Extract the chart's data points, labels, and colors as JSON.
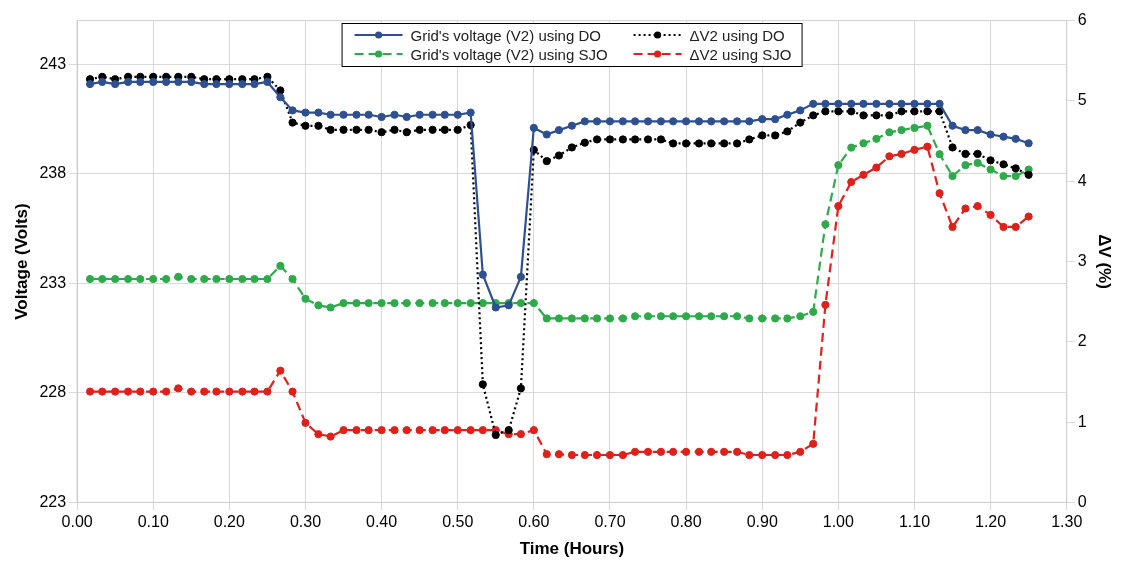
{
  "chart_data": {
    "type": "line",
    "xlabel": "Time (Hours)",
    "ylabel": "Voltage (Volts)",
    "y2label": "ΔV (%)",
    "x": [
      0.017,
      0.033,
      0.05,
      0.067,
      0.083,
      0.1,
      0.117,
      0.133,
      0.15,
      0.167,
      0.183,
      0.2,
      0.217,
      0.233,
      0.25,
      0.267,
      0.283,
      0.3,
      0.317,
      0.333,
      0.35,
      0.367,
      0.383,
      0.4,
      0.417,
      0.433,
      0.45,
      0.467,
      0.483,
      0.5,
      0.517,
      0.533,
      0.55,
      0.567,
      0.583,
      0.6,
      0.617,
      0.633,
      0.65,
      0.667,
      0.683,
      0.7,
      0.717,
      0.733,
      0.75,
      0.767,
      0.783,
      0.8,
      0.817,
      0.833,
      0.85,
      0.867,
      0.883,
      0.9,
      0.917,
      0.933,
      0.95,
      0.967,
      0.983,
      1.0,
      1.017,
      1.033,
      1.05,
      1.067,
      1.083,
      1.1,
      1.117,
      1.133,
      1.15,
      1.167,
      1.183,
      1.2,
      1.217,
      1.233,
      1.25
    ],
    "series": [
      {
        "name": "Grid's voltage (V2) using DO",
        "color": "#2e5090",
        "line_style": "solid",
        "values": [
          242.1,
          242.2,
          242.1,
          242.2,
          242.2,
          242.2,
          242.2,
          242.2,
          242.2,
          242.1,
          242.1,
          242.1,
          242.1,
          242.1,
          242.2,
          241.5,
          240.9,
          240.8,
          240.8,
          240.7,
          240.7,
          240.7,
          240.7,
          240.6,
          240.7,
          240.6,
          240.7,
          240.7,
          240.7,
          240.7,
          240.8,
          233.4,
          231.9,
          232.0,
          233.3,
          240.1,
          239.8,
          240.0,
          240.2,
          240.4,
          240.4,
          240.4,
          240.4,
          240.4,
          240.4,
          240.4,
          240.4,
          240.4,
          240.4,
          240.4,
          240.4,
          240.4,
          240.4,
          240.5,
          240.5,
          240.7,
          240.9,
          241.2,
          241.2,
          241.2,
          241.2,
          241.2,
          241.2,
          241.2,
          241.2,
          241.2,
          241.2,
          241.2,
          240.2,
          240.0,
          240.0,
          239.8,
          239.7,
          239.6,
          239.4
        ]
      },
      {
        "name": "ΔV2 using DO",
        "color": "#000000",
        "line_style": "dotted",
        "axis": "y2",
        "values": [
          5.27,
          5.3,
          5.27,
          5.3,
          5.3,
          5.3,
          5.3,
          5.3,
          5.3,
          5.27,
          5.27,
          5.27,
          5.27,
          5.27,
          5.3,
          5.13,
          4.73,
          4.69,
          4.69,
          4.64,
          4.64,
          4.64,
          4.64,
          4.61,
          4.64,
          4.61,
          4.64,
          4.64,
          4.64,
          4.64,
          4.7,
          1.47,
          0.84,
          0.9,
          1.42,
          4.39,
          4.25,
          4.32,
          4.42,
          4.48,
          4.52,
          4.52,
          4.52,
          4.52,
          4.52,
          4.52,
          4.47,
          4.47,
          4.47,
          4.47,
          4.47,
          4.47,
          4.52,
          4.57,
          4.57,
          4.62,
          4.73,
          4.82,
          4.87,
          4.87,
          4.87,
          4.82,
          4.82,
          4.82,
          4.87,
          4.87,
          4.87,
          4.87,
          4.42,
          4.34,
          4.34,
          4.26,
          4.21,
          4.16,
          4.08
        ]
      },
      {
        "name": "Grid's voltage (V2) using SJO",
        "color": "#2eaa4a",
        "line_style": "dashed",
        "values": [
          233.2,
          233.2,
          233.2,
          233.2,
          233.2,
          233.2,
          233.2,
          233.3,
          233.2,
          233.2,
          233.2,
          233.2,
          233.2,
          233.2,
          233.2,
          233.8,
          233.2,
          232.3,
          232.0,
          231.9,
          232.1,
          232.1,
          232.1,
          232.1,
          232.1,
          232.1,
          232.1,
          232.1,
          232.1,
          232.1,
          232.1,
          232.1,
          232.1,
          232.1,
          232.1,
          232.1,
          231.4,
          231.4,
          231.4,
          231.4,
          231.4,
          231.4,
          231.4,
          231.5,
          231.5,
          231.5,
          231.5,
          231.5,
          231.5,
          231.5,
          231.5,
          231.5,
          231.4,
          231.4,
          231.4,
          231.4,
          231.5,
          231.7,
          235.7,
          238.4,
          239.2,
          239.4,
          239.6,
          239.9,
          240.0,
          240.1,
          240.2,
          238.9,
          237.9,
          238.4,
          238.5,
          238.2,
          237.9,
          237.9,
          238.2
        ]
      },
      {
        "name": "ΔV2 using SJO",
        "color": "#e0201a",
        "line_style": "dashed",
        "axis": "y2",
        "values": [
          1.38,
          1.38,
          1.38,
          1.38,
          1.38,
          1.38,
          1.38,
          1.42,
          1.38,
          1.38,
          1.38,
          1.38,
          1.38,
          1.38,
          1.38,
          1.64,
          1.38,
          0.99,
          0.85,
          0.82,
          0.9,
          0.9,
          0.9,
          0.9,
          0.9,
          0.9,
          0.9,
          0.9,
          0.9,
          0.9,
          0.9,
          0.9,
          0.9,
          0.85,
          0.85,
          0.9,
          0.6,
          0.6,
          0.59,
          0.59,
          0.59,
          0.59,
          0.59,
          0.63,
          0.63,
          0.63,
          0.63,
          0.63,
          0.63,
          0.63,
          0.63,
          0.63,
          0.59,
          0.59,
          0.59,
          0.59,
          0.63,
          0.73,
          2.46,
          3.69,
          3.99,
          4.08,
          4.17,
          4.31,
          4.34,
          4.39,
          4.43,
          3.85,
          3.43,
          3.66,
          3.69,
          3.58,
          3.43,
          3.43,
          3.56
        ]
      }
    ],
    "xlim": [
      0,
      1.3
    ],
    "xticks": [
      {
        "value": 0,
        "label": "0.00"
      },
      {
        "value": 0.1,
        "label": "0.10"
      },
      {
        "value": 0.2,
        "label": "0.20"
      },
      {
        "value": 0.3,
        "label": "0.30"
      },
      {
        "value": 0.4,
        "label": "0.40"
      },
      {
        "value": 0.5,
        "label": "0.50"
      },
      {
        "value": 0.6,
        "label": "0.60"
      },
      {
        "value": 0.7,
        "label": "0.70"
      },
      {
        "value": 0.8,
        "label": "0.80"
      },
      {
        "value": 0.9,
        "label": "0.90"
      },
      {
        "value": 1.0,
        "label": "1.00"
      },
      {
        "value": 1.1,
        "label": "1.10"
      },
      {
        "value": 1.2,
        "label": "1.20"
      },
      {
        "value": 1.3,
        "label": "1.30"
      }
    ],
    "ylim": [
      223,
      245
    ],
    "yticks": [
      223,
      228,
      233,
      238,
      243
    ],
    "y2lim": [
      0,
      6
    ],
    "y2ticks": [
      0,
      1,
      2,
      3,
      4,
      5,
      6
    ],
    "grid": true,
    "legend": "top",
    "marker": "circle"
  }
}
